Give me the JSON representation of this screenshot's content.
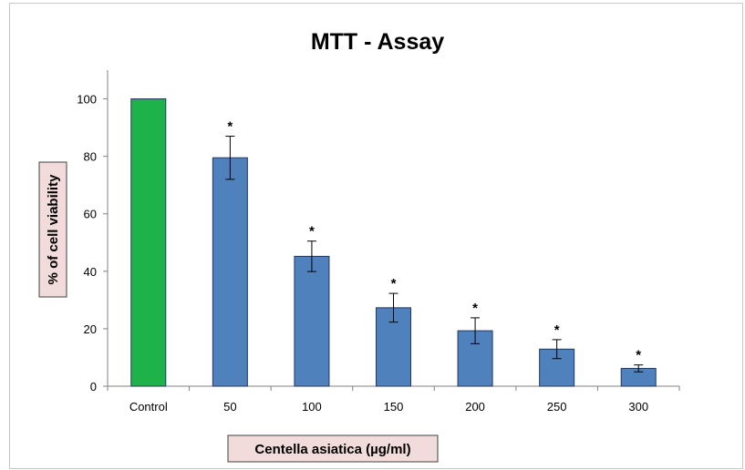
{
  "chart_data": {
    "type": "bar",
    "title": "MTT - Assay",
    "xlabel": "Centella asiatica  (µg/ml)",
    "ylabel": "% of cell viability",
    "categories": [
      "Control",
      "50",
      "100",
      "150",
      "200",
      "250",
      "300"
    ],
    "values": [
      100,
      79.5,
      45.2,
      27.3,
      19.3,
      12.9,
      6.2
    ],
    "errors": [
      0,
      7.5,
      5.3,
      5.0,
      4.5,
      3.3,
      1.2
    ],
    "significance": [
      "",
      "*",
      "*",
      "*",
      "*",
      "*",
      "*"
    ],
    "ylim": [
      0,
      110
    ],
    "yticks": [
      0,
      20,
      40,
      60,
      80,
      100
    ],
    "bar_colors": [
      "#1db34a",
      "#4f81bd",
      "#4f81bd",
      "#4f81bd",
      "#4f81bd",
      "#4f81bd",
      "#4f81bd"
    ],
    "bar_edge_color": "#1f3864",
    "label_box_color": "#f2dcdb",
    "grid": false,
    "legend": "none"
  }
}
